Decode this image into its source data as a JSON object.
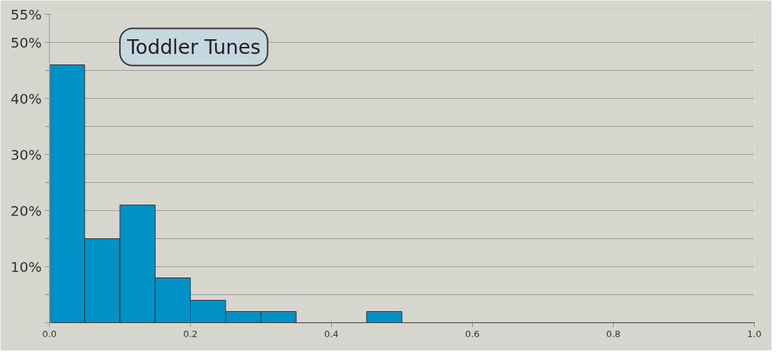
{
  "chart_data": {
    "type": "histogram",
    "title": "Toddler Tunes",
    "bins": [
      0,
      0.05,
      0.1,
      0.15,
      0.2,
      0.25,
      0.3,
      0.35,
      0.4,
      0.45,
      0.5,
      0.55,
      0.6,
      0.65,
      0.7,
      0.75,
      0.8,
      0.85,
      0.9,
      0.95,
      1.0
    ],
    "values": [
      46,
      15,
      21,
      8,
      4,
      2,
      2,
      0,
      0,
      2,
      0,
      0,
      0,
      0,
      0,
      0,
      0,
      0,
      0,
      0
    ],
    "color": "#0092c6",
    "xlim": [
      0,
      1.0
    ],
    "xticks": [
      {
        "value": 0,
        "label": "0.0"
      },
      {
        "value": 0.2,
        "label": "0.2"
      },
      {
        "value": 0.4,
        "label": "0.4"
      },
      {
        "value": 0.6,
        "label": "0.6"
      },
      {
        "value": 0.8,
        "label": "0.8"
      },
      {
        "value": 1.0,
        "label": "1.0"
      }
    ],
    "ylim": [
      0,
      55
    ],
    "yticks": [
      {
        "value": 0,
        "label": null
      },
      {
        "value": 5,
        "label": null
      },
      {
        "value": 10,
        "label": "10%"
      },
      {
        "value": 15,
        "label": null
      },
      {
        "value": 20,
        "label": "20%"
      },
      {
        "value": 25,
        "label": null
      },
      {
        "value": 30,
        "label": "30%"
      },
      {
        "value": 35,
        "label": null
      },
      {
        "value": 40,
        "label": "40%"
      },
      {
        "value": 45,
        "label": null
      },
      {
        "value": 50,
        "label": "50%"
      },
      {
        "value": 55,
        "label": "55%"
      }
    ],
    "grid": "y"
  }
}
